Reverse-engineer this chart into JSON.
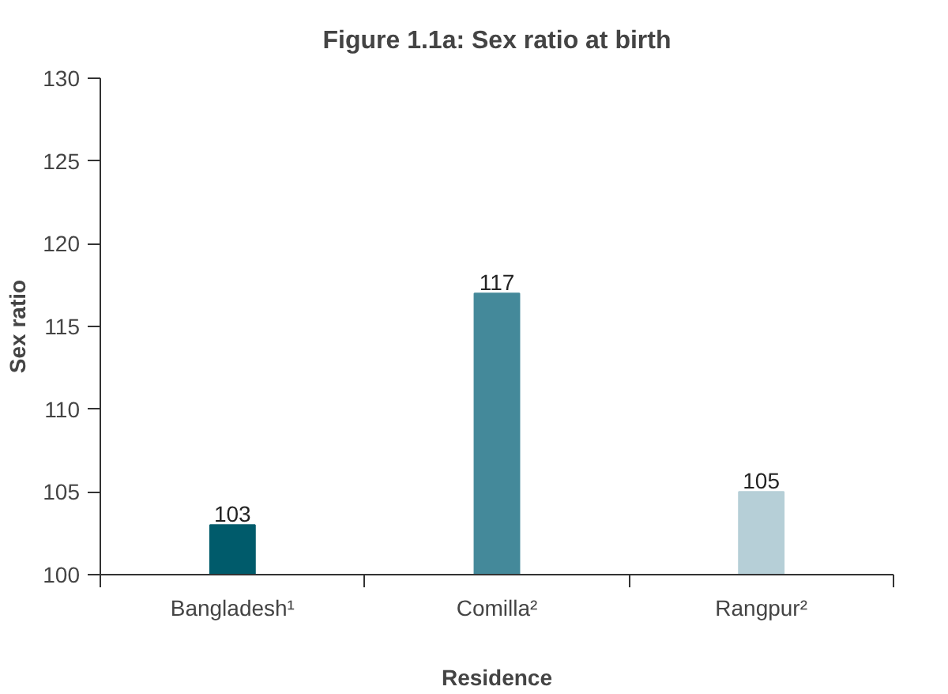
{
  "chart_data": {
    "type": "bar",
    "title": "Figure 1.1a: Sex ratio at birth",
    "xlabel": "Residence",
    "ylabel": "Sex ratio",
    "categories": [
      "Bangladesh¹",
      "Comilla²",
      "Rangpur²"
    ],
    "values": [
      103,
      117,
      105
    ],
    "colors": [
      "#005b6b",
      "#44899a",
      "#b6cfd7"
    ],
    "ylim": [
      100,
      130
    ],
    "yticks": [
      100,
      105,
      110,
      115,
      120,
      125,
      130
    ],
    "data_labels": true,
    "grid": false
  }
}
